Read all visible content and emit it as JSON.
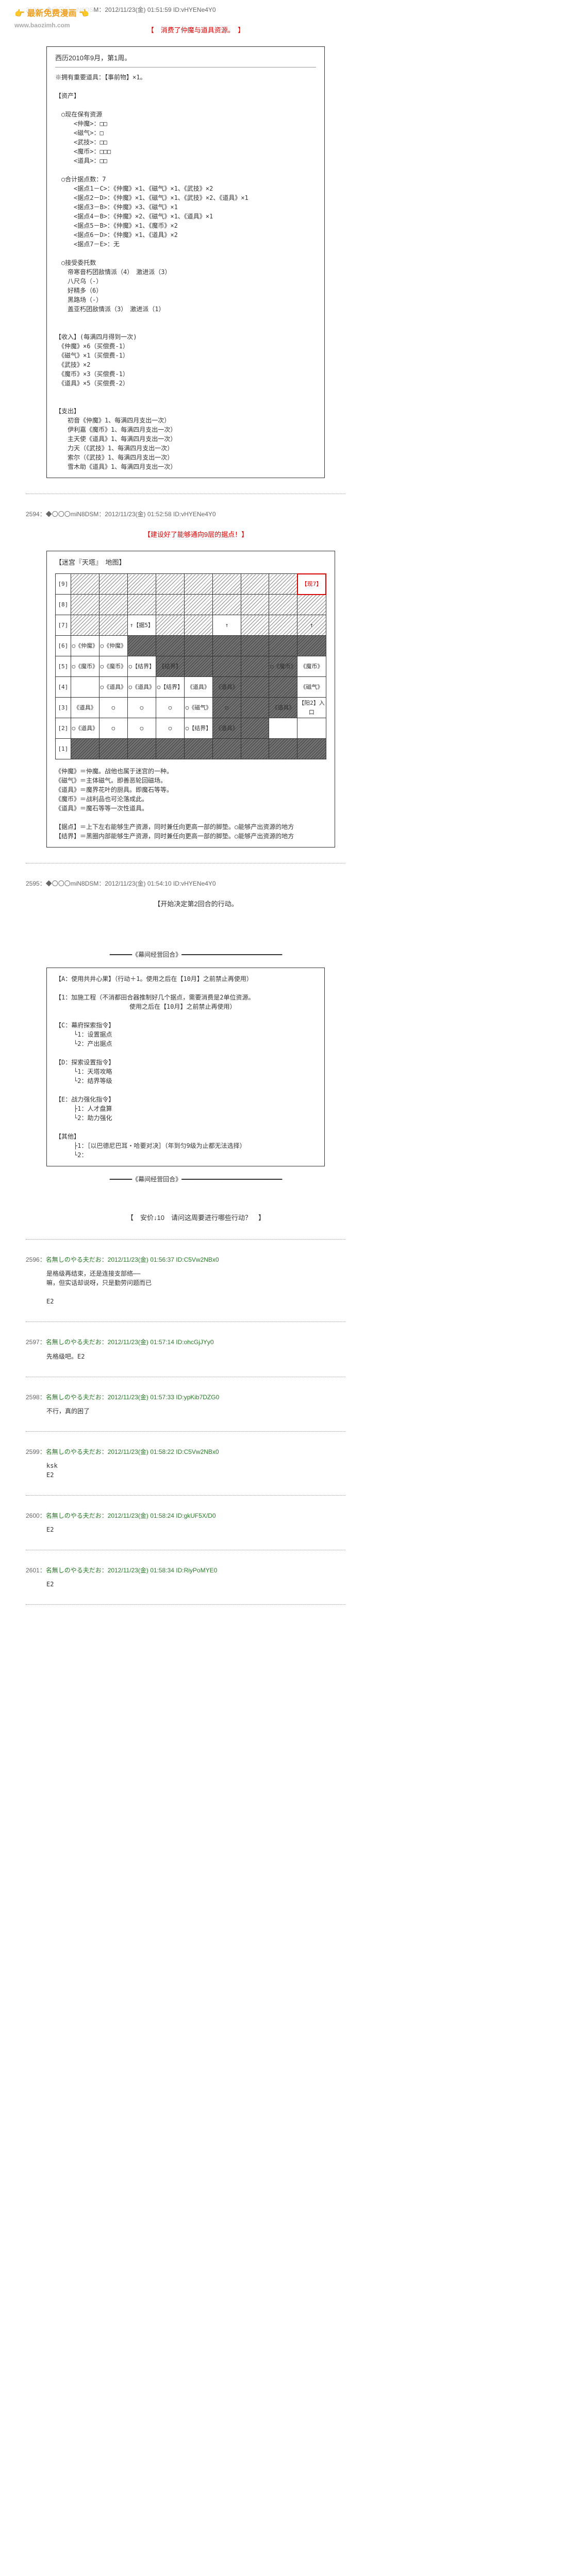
{
  "watermark": {
    "title": "👉 最新免费漫画 👈",
    "url": "www.baozimh.com"
  },
  "post2593": {
    "header": "2593：◆〇〇〇miN8DSM：2012/11/23(金) 01:51:59 ID:vHYENe4Y0",
    "redLine": "【　消费了仲魔与道具资源。　】",
    "boxHeader": "西历2010年9月，第1周。",
    "body": "※拥有重要道具：【事前物】×1。\n\n【资产】\n\n　○现在保有资源\n　　　<仲魔>：□□\n　　　<磁气>：□\n　　　<武技>：□□\n　　　<魔币>：□□□\n　　　<道具>：□□\n\n　○合计据点数：7\n　　　<据点1－C>：《仲魔》×1、《磁气》×1、《武技》×2\n　　　<据点2－D>：《仲魔》×1、《磁气》×1、《武技》×2、《道具》×1\n　　　<据点3－B>：《仲魔》×3、《磁气》×1\n　　　<据点4－B>：《仲魔》×2、《磁气》×1、《道具》×1\n　　　<据点5－B>：《仲魔》×1、《魔币》×2\n　　　<据点6－D>：《仲魔》×1、《道具》×2\n　　　<据点7－E>：无\n\n　○接受委托数\n　　帝寒音朽团敌情派（4）　激进派（3）\n　　八尺乌（-）\n　　好精多（6）\n　　黑路场（-）\n　　盖亚朽团敌情派（3）　激进派（1）\n\n\n【收入】(每满四月得到一次)\n　《仲魔》×6（买偿费-1）\n　《磁气》×1（买偿费-1）\n　《武技》×2\n　《魔币》×3（买偿费-1）\n　《道具》×5（买偿费-2）\n\n\n【支出】\n　　初音《仲魔》1、每满四月支出一次）\n　　伊利嘉《魔币》1、每满四月支出一次）\n　　主天使《道具》1、每满四月支出一次）\n　　力天（《武技》1、每满四月支出一次）\n　　索尔（《武技》1、每满四月支出一次）\n　　雪木助《道具》1、每满四月支出一次）"
  },
  "post2594": {
    "header": "2594：◆〇〇〇miN8DSM：2012/11/23(金) 01:52:58 ID:vHYENe4Y0",
    "redLine": "【建设好了能够通向9层的据点！】",
    "mapTitle": "【迷宫『天塔』　地图】",
    "rowLabels": [
      "[9]",
      "[8]",
      "[7]",
      "[6]",
      "[5]",
      "[4]",
      "[3]",
      "[2]",
      "[1]"
    ],
    "cells": {
      "r1c9": "【现7】",
      "r3c3": "↑【据5】",
      "r3c6": "↑",
      "r3c9": "↑",
      "r4c1": "○《仲魔》",
      "r4c2": "○《仲魔》",
      "r5c1": "○《魔币》",
      "r5c2": "○《魔币》",
      "r5c3": "○【结界】",
      "r5c4": "【结界】",
      "r5c8": "○《魔币》",
      "r5c9": "《魔币》",
      "r6c1": "",
      "r6c2": "○《道具》",
      "r6c3": "○《道具》",
      "r6c4": "○【结界】",
      "r6c5": "《道具》",
      "r6c6": "《道具》",
      "r6c9": "《磁气》",
      "r7c1": "《道具》",
      "r7c2": "○",
      "r7c3": "○",
      "r7c4": "○",
      "r7c5": "○《磁气》",
      "r7c6": "○",
      "r7c8": "《道具》",
      "r7c9": "【阳2】入口",
      "r8c1": "○《道具》",
      "r8c2": "○",
      "r8c3": "○",
      "r8c4": "○",
      "r8c5": "○【结界】",
      "r8c6": "《道具》"
    },
    "hatched": [
      "0-0",
      "0-1",
      "0-2",
      "0-3",
      "0-4",
      "0-5",
      "0-6",
      "0-7",
      "0-8",
      "1-0",
      "1-1",
      "1-2",
      "1-3",
      "1-4",
      "1-5",
      "1-6",
      "1-7",
      "2-0",
      "2-1",
      "2-3",
      "2-4",
      "2-6",
      "2-7",
      "1-8",
      "2-8"
    ],
    "dark": [
      "3-2",
      "3-3",
      "3-4",
      "3-5",
      "3-6",
      "3-7",
      "3-8",
      "4-3",
      "4-4",
      "4-5",
      "4-6",
      "4-7",
      "5-5",
      "5-6",
      "5-7",
      "6-5",
      "6-6",
      "6-7",
      "7-5",
      "7-6",
      "8-0",
      "8-1",
      "8-2",
      "8-3",
      "8-4",
      "8-5",
      "8-6",
      "8-7",
      "8-8"
    ],
    "legend": "《仲魔》＝仲魔。战他也属于迷宫的一种。\n《磁气》＝主体磁气。即善恶轮回磁场。\n《道具》＝魔界花叶的厨具。即魔石等等。\n《魔币》＝战利品也可沦落成此。\n《道具》＝魔石等等一次性道具。\n\n【据点】＝上下左右能够生产资源，同时兼任向更高一部的脚垫。○能够产出资源的地方\n【结界】＝黑圈内部能够生产资源，同时兼任向更高一部的脚垫。○能够产出资源的地方"
  },
  "post2595": {
    "header": "2595：◆〇〇〇miN8DSM：2012/11/23(金) 01:54:10 ID:vHYENe4Y0",
    "title": "【开始决定第2回合的行动。",
    "sep": "━━━━━━《幕间经营回合》━━━━━━━━━━━━━━━━━━━━━━━━━━━",
    "body": "【A：使用共井心果】（行动＋1。使用之后在【10月】之前禁止再使用）\n\n【1：加施工程（不消都田合器推制好几个据点，需要消费是2单位资源。\n　　　　　　　　　　　　使用之后在【10月】之前禁止再使用）\n\n【C：幕府探索指令】\n　　　└1：设置据点\n　　　└2：产出据点\n\n【D：探索设置指令】\n　　　└1：天塔攻略\n　　　└2：结界等级\n\n【E：战力强化指令】\n　　　├1：人才盘算\n　　　└2：助力强化\n\n【其他】\n　　　├1：［以巴德尼巴耳・哈要对决］（年到匀9级为止都无法选择）\n　　　└2：",
    "question": "【　安价↓10　请问这周要进行哪些行动？　】"
  },
  "replies": [
    {
      "num": "2596",
      "header": "：名無しのやる夫だお：2012/11/23(金) 01:56:37 ID:C5Vw2NBx0",
      "body": "是格级再结束，还是连接支部络——\n嘛，但实话却说呀，只是勤劳问题而已\n\nE2"
    },
    {
      "num": "2597",
      "header": "：名無しのやる夫だお：2012/11/23(金) 01:57:14 ID:ohcGjJYy0",
      "body": "先格级吧。E2"
    },
    {
      "num": "2598",
      "header": "：名無しのやる夫だお：2012/11/23(金) 01:57:33 ID:ypKib7DZG0",
      "body": "不行，真的困了"
    },
    {
      "num": "2599",
      "header": "：名無しのやる夫だお：2012/11/23(金) 01:58:22 ID:C5Vw2NBx0",
      "body": "ksk\nE2"
    },
    {
      "num": "2600",
      "header": "：名無しのやる夫だお：2012/11/23(金) 01:58:24 ID:gkUF5X/D0",
      "body": "E2"
    },
    {
      "num": "2601",
      "header": "：名無しのやる夫だお：2012/11/23(金) 01:58:34 ID:RiyPoMYE0",
      "body": "E2"
    }
  ]
}
